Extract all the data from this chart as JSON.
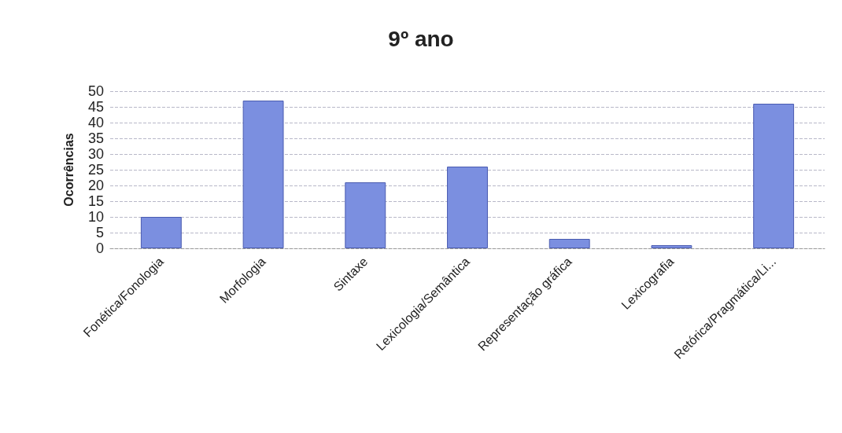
{
  "chart_data": {
    "type": "bar",
    "title": "9º ano",
    "ylabel": "Ocorrências",
    "categories": [
      "Fonética/Fonologia",
      "Morfologia",
      "Sintaxe",
      "Lexicologia/Semântica",
      "Representação gráfica",
      "Lexicografia",
      "Retórica/Pragmática/Li..."
    ],
    "values": [
      10,
      47,
      21,
      26,
      3,
      1,
      46
    ],
    "color": "#7b8fe0",
    "ylim": [
      0,
      50
    ],
    "yticks": [
      0,
      5,
      10,
      15,
      20,
      25,
      30,
      35,
      40,
      45,
      50
    ],
    "grid": true
  }
}
